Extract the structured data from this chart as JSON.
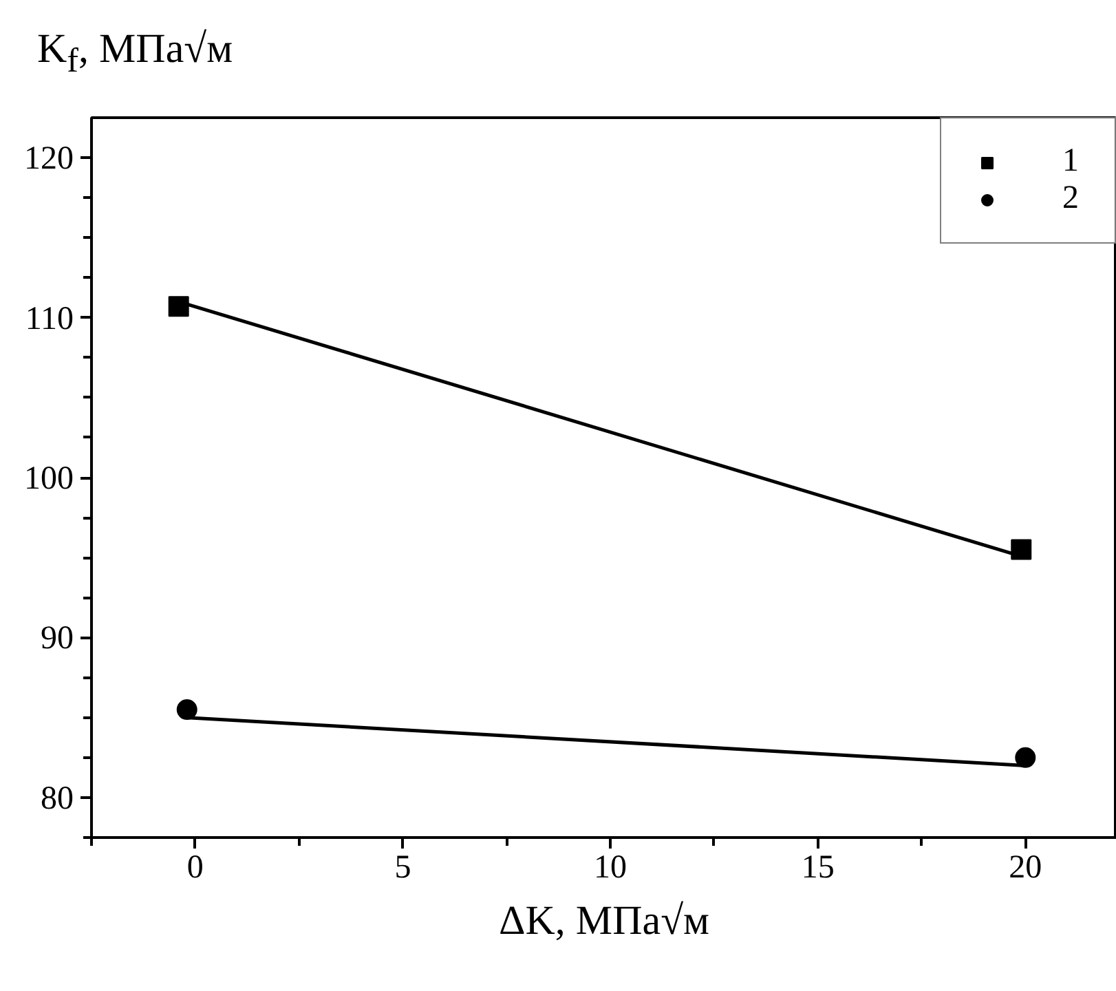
{
  "chart_data": {
    "type": "scatter",
    "xlabel": "ΔK, МПа√м",
    "ylabel": "K$_{f}$, МПа√м",
    "xlim": [
      -2.5,
      22.2
    ],
    "ylim": [
      77.5,
      122.5
    ],
    "xticks": [
      {
        "value": -2.5,
        "label": null
      },
      0,
      {
        "value": 2.5,
        "label": null
      },
      5,
      {
        "value": 7.5,
        "label": null
      },
      10,
      {
        "value": 12.5,
        "label": null
      },
      15,
      {
        "value": 17.5,
        "label": null
      },
      20
    ],
    "yticks": [
      {
        "value": 77.5,
        "label": null
      },
      80,
      {
        "value": 82.5,
        "label": null
      },
      {
        "value": 85,
        "label": null
      },
      {
        "value": 87.5,
        "label": null
      },
      90,
      {
        "value": 92.5,
        "label": null
      },
      {
        "value": 95,
        "label": null
      },
      {
        "value": 97.5,
        "label": null
      },
      100,
      {
        "value": 102.5,
        "label": null
      },
      {
        "value": 105,
        "label": null
      },
      {
        "value": 107.5,
        "label": null
      },
      110,
      {
        "value": 112.5,
        "label": null
      },
      {
        "value": 115,
        "label": null
      },
      {
        "value": 117.5,
        "label": null
      },
      120
    ],
    "legend": "top right",
    "grid": false,
    "series": [
      {
        "name": "1",
        "marker": "square",
        "color": "#000000",
        "x": [
          -0.4,
          19.9
        ],
        "values": [
          110.7,
          95.5
        ]
      },
      {
        "name": "2",
        "marker": "circle",
        "color": "#000000",
        "x": [
          -0.2,
          20
        ],
        "values": [
          85.5,
          82.5
        ]
      },
      {
        "type": "line",
        "color": "#000000",
        "x": [
          -0.4,
          20
        ],
        "values": [
          111,
          95
        ]
      },
      {
        "type": "line",
        "color": "#000000",
        "x": [
          -0.2,
          20
        ],
        "values": [
          85,
          82
        ]
      }
    ]
  }
}
